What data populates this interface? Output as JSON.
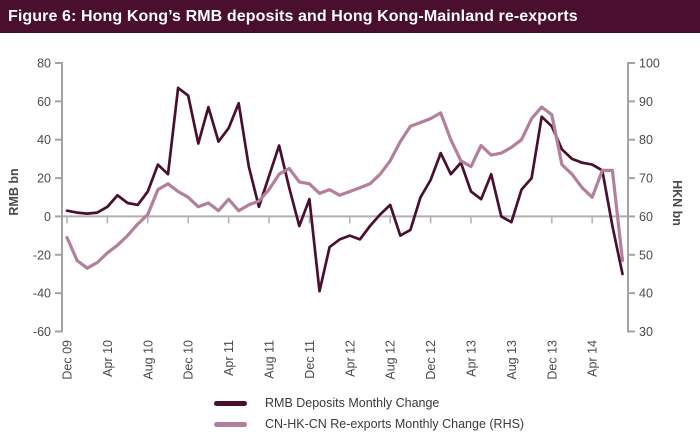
{
  "title": "Figure 6: Hong Kong’s RMB deposits and Hong Kong-Mainland re-exports",
  "colors": {
    "title_bar_bg": "#4a0f2f",
    "title_text": "#ffffff",
    "axis_line": "#a5a2a3",
    "zero_line": "#b2afb0",
    "tick_text": "#4b4b4d",
    "legend_text": "#3a3a3c"
  },
  "chart_data": {
    "type": "line",
    "title": "Figure 6: Hong Kong’s RMB deposits and Hong Kong-Mainland re-exports",
    "x": [
      "Dec 09",
      "Jan 10",
      "Feb 10",
      "Mar 10",
      "Apr 10",
      "May 10",
      "Jun 10",
      "Jul 10",
      "Aug 10",
      "Sep 10",
      "Oct 10",
      "Nov 10",
      "Dec 10",
      "Jan 11",
      "Feb 11",
      "Mar 11",
      "Apr 11",
      "May 11",
      "Jun 11",
      "Jul 11",
      "Aug 11",
      "Sep 11",
      "Oct 11",
      "Nov 11",
      "Dec 11",
      "Jan 12",
      "Feb 12",
      "Mar 12",
      "Apr 12",
      "May 12",
      "Jun 12",
      "Jul 12",
      "Aug 12",
      "Sep 12",
      "Oct 12",
      "Nov 12",
      "Dec 12",
      "Jan 13",
      "Feb 13",
      "Mar 13",
      "Apr 13",
      "May 13",
      "Jun 13",
      "Jul 13",
      "Aug 13",
      "Sep 13",
      "Oct 13",
      "Nov 13",
      "Dec 13",
      "Jan 14",
      "Feb 14",
      "Mar 14",
      "Apr 14",
      "May 14",
      "Jun 14",
      "Jul 14"
    ],
    "x_tick_labels": [
      "Dec 09",
      "Apr 10",
      "Aug 10",
      "Dec 10",
      "Apr 11",
      "Aug 11",
      "Dec 11",
      "Apr 12",
      "Aug 12",
      "Dec 12",
      "Apr 13",
      "Aug 13",
      "Dec 13",
      "Apr 14"
    ],
    "x_tick_every": 4,
    "left_axis": {
      "label": "RMB bn",
      "min": -60,
      "max": 80,
      "ticks": [
        80,
        60,
        40,
        20,
        0,
        -20,
        -40,
        -60
      ]
    },
    "right_axis": {
      "label": "HKN bn",
      "min": 30,
      "max": 100,
      "ticks": [
        100,
        90,
        80,
        70,
        60,
        50,
        40,
        30
      ]
    },
    "grid": false,
    "legend_position": "bottom",
    "series": [
      {
        "name": "RMB Deposits Monthly Change",
        "axis": "left",
        "color": "#4a0f2f",
        "values": [
          3,
          2,
          1.5,
          2,
          5,
          11,
          7,
          6,
          13,
          27,
          22,
          67,
          63,
          38,
          57,
          39,
          46,
          59,
          26,
          5,
          21,
          37,
          15,
          -5,
          9,
          -39,
          -16,
          -12,
          -10,
          -12,
          -5,
          1,
          6,
          -10,
          -7,
          10,
          19,
          33,
          22,
          28,
          13,
          9,
          22,
          0,
          -3,
          14,
          20,
          52,
          47,
          35,
          30,
          28,
          27,
          24,
          -5,
          -30
        ]
      },
      {
        "name": "CN-HK-CN Re-exports Monthly Change (RHS)",
        "axis": "right",
        "color": "#b27f9c",
        "values": [
          54.5,
          48.5,
          46.5,
          48,
          50.5,
          52.5,
          55,
          58,
          60.5,
          67,
          68.5,
          66.5,
          65,
          62.5,
          63.5,
          61.5,
          64.5,
          61.5,
          63,
          64,
          67,
          71,
          72.5,
          69,
          68.5,
          66,
          67,
          65.5,
          66.5,
          67.5,
          68.5,
          71,
          74.5,
          79.5,
          83.5,
          84.5,
          85.5,
          87,
          80,
          74.5,
          73,
          78.5,
          76,
          76.5,
          78,
          80,
          85.5,
          88.5,
          86.5,
          73.5,
          71,
          67.5,
          65,
          72,
          72,
          48.5
        ]
      }
    ]
  }
}
